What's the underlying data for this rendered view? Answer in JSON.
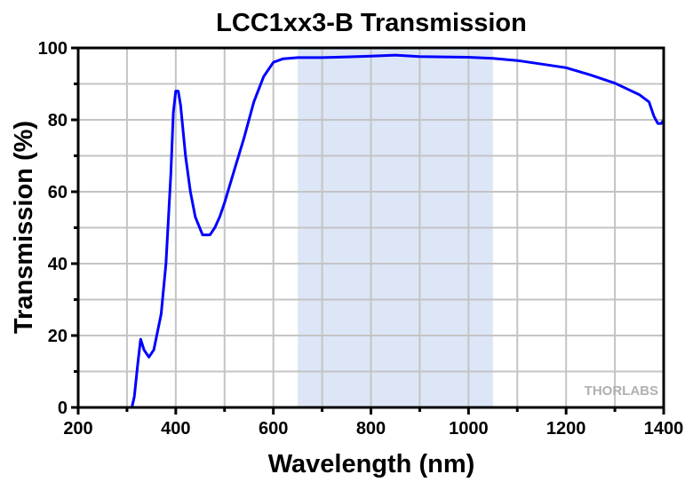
{
  "chart_data": {
    "type": "line",
    "title": "LCC1xx3-B Transmission",
    "xlabel": "Wavelength (nm)",
    "ylabel": "Transmission (%)",
    "xlim": [
      200,
      1400
    ],
    "ylim": [
      0,
      100
    ],
    "xticks": [
      200,
      400,
      600,
      800,
      1000,
      1200,
      1400
    ],
    "yticks": [
      0,
      20,
      40,
      60,
      80,
      100
    ],
    "grid": true,
    "shaded_region": {
      "range": [
        650,
        1050
      ],
      "color": "#dce6f7"
    },
    "series": [
      {
        "name": "Transmission",
        "color": "#0000ff",
        "x": [
          310,
          315,
          322,
          328,
          335,
          345,
          355,
          370,
          380,
          390,
          395,
          400,
          405,
          410,
          420,
          430,
          440,
          455,
          470,
          480,
          490,
          500,
          520,
          540,
          560,
          580,
          600,
          620,
          650,
          700,
          750,
          800,
          850,
          900,
          950,
          1000,
          1050,
          1100,
          1150,
          1200,
          1250,
          1300,
          1350,
          1370,
          1380,
          1388,
          1395,
          1400
        ],
        "y": [
          0,
          3,
          12,
          19,
          16,
          14,
          16,
          26,
          40,
          65,
          82,
          88,
          88,
          84,
          70,
          60,
          53,
          48,
          48,
          50,
          53,
          57,
          66,
          75,
          85,
          92,
          96,
          97,
          97.3,
          97.3,
          97.5,
          97.7,
          98,
          97.6,
          97.5,
          97.4,
          97.1,
          96.5,
          95.5,
          94.5,
          92.5,
          90.2,
          87,
          85,
          81,
          79,
          79,
          80
        ]
      }
    ],
    "watermark": "THORLABS"
  }
}
